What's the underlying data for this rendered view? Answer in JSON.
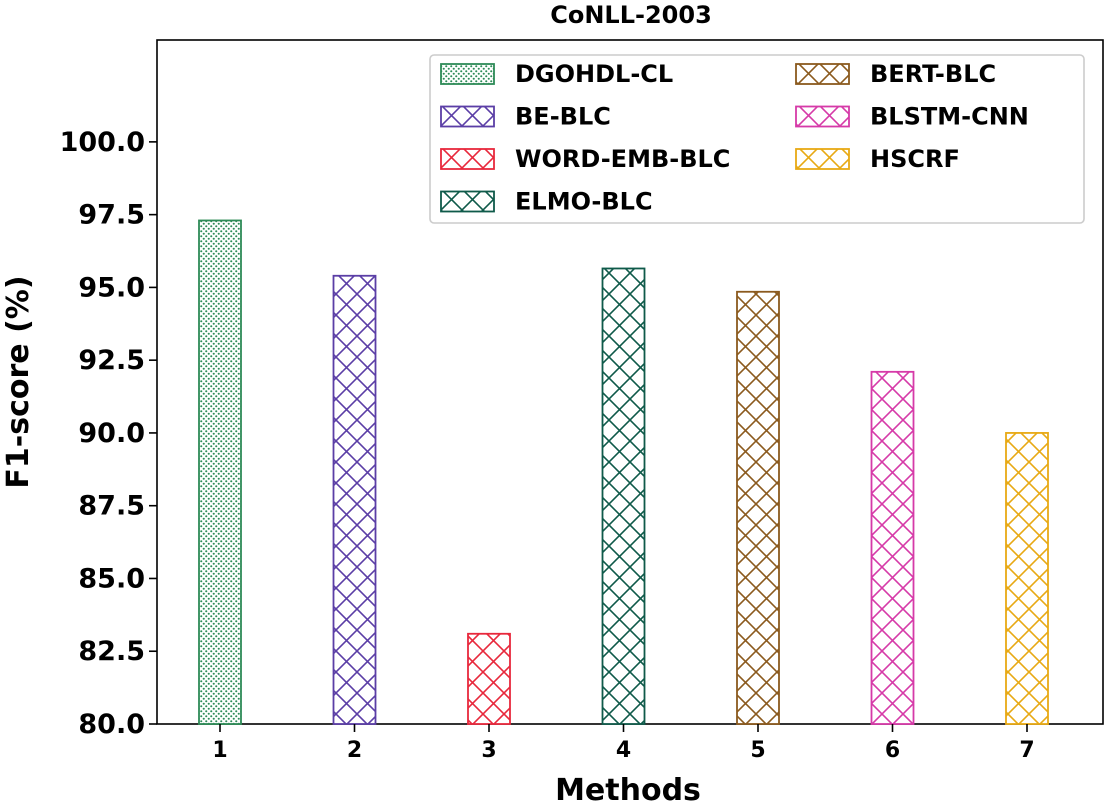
{
  "chart_data": {
    "type": "bar",
    "title": "CoNLL-2003",
    "xlabel": "Methods",
    "ylabel": "F1-score (%)",
    "categories": [
      "1",
      "2",
      "3",
      "4",
      "5",
      "6",
      "7"
    ],
    "ylim": [
      80.0,
      103.5
    ],
    "yticks": [
      "80.0",
      "82.5",
      "85.0",
      "87.5",
      "90.0",
      "92.5",
      "95.0",
      "97.5",
      "100.0"
    ],
    "grid": false,
    "legend_position": "top-right",
    "series": [
      {
        "name": "DGOHDL-CL",
        "values": [
          97.3,
          null,
          null,
          null,
          null,
          null,
          null
        ],
        "color": "#2e8b57",
        "pattern": "dots"
      },
      {
        "name": "BE-BLC",
        "values": [
          null,
          95.4,
          null,
          null,
          null,
          null,
          null
        ],
        "color": "#5b3ea6",
        "pattern": "crosshatch"
      },
      {
        "name": "WORD-EMB-BLC",
        "values": [
          null,
          null,
          83.1,
          null,
          null,
          null,
          null
        ],
        "color": "#e8283c",
        "pattern": "crosshatch"
      },
      {
        "name": "ELMO-BLC",
        "values": [
          null,
          null,
          null,
          95.65,
          null,
          null,
          null
        ],
        "color": "#0f5a4a",
        "pattern": "crosshatch"
      },
      {
        "name": "BERT-BLC",
        "values": [
          null,
          null,
          null,
          null,
          94.85,
          null,
          null
        ],
        "color": "#8b5a1e",
        "pattern": "crosshatch"
      },
      {
        "name": "BLSTM-CNN",
        "values": [
          null,
          null,
          null,
          null,
          null,
          92.1,
          null
        ],
        "color": "#d63aa8",
        "pattern": "crosshatch"
      },
      {
        "name": "HSCRF",
        "values": [
          null,
          null,
          null,
          null,
          null,
          null,
          90.0
        ],
        "color": "#e8a914",
        "pattern": "crosshatch"
      }
    ]
  }
}
